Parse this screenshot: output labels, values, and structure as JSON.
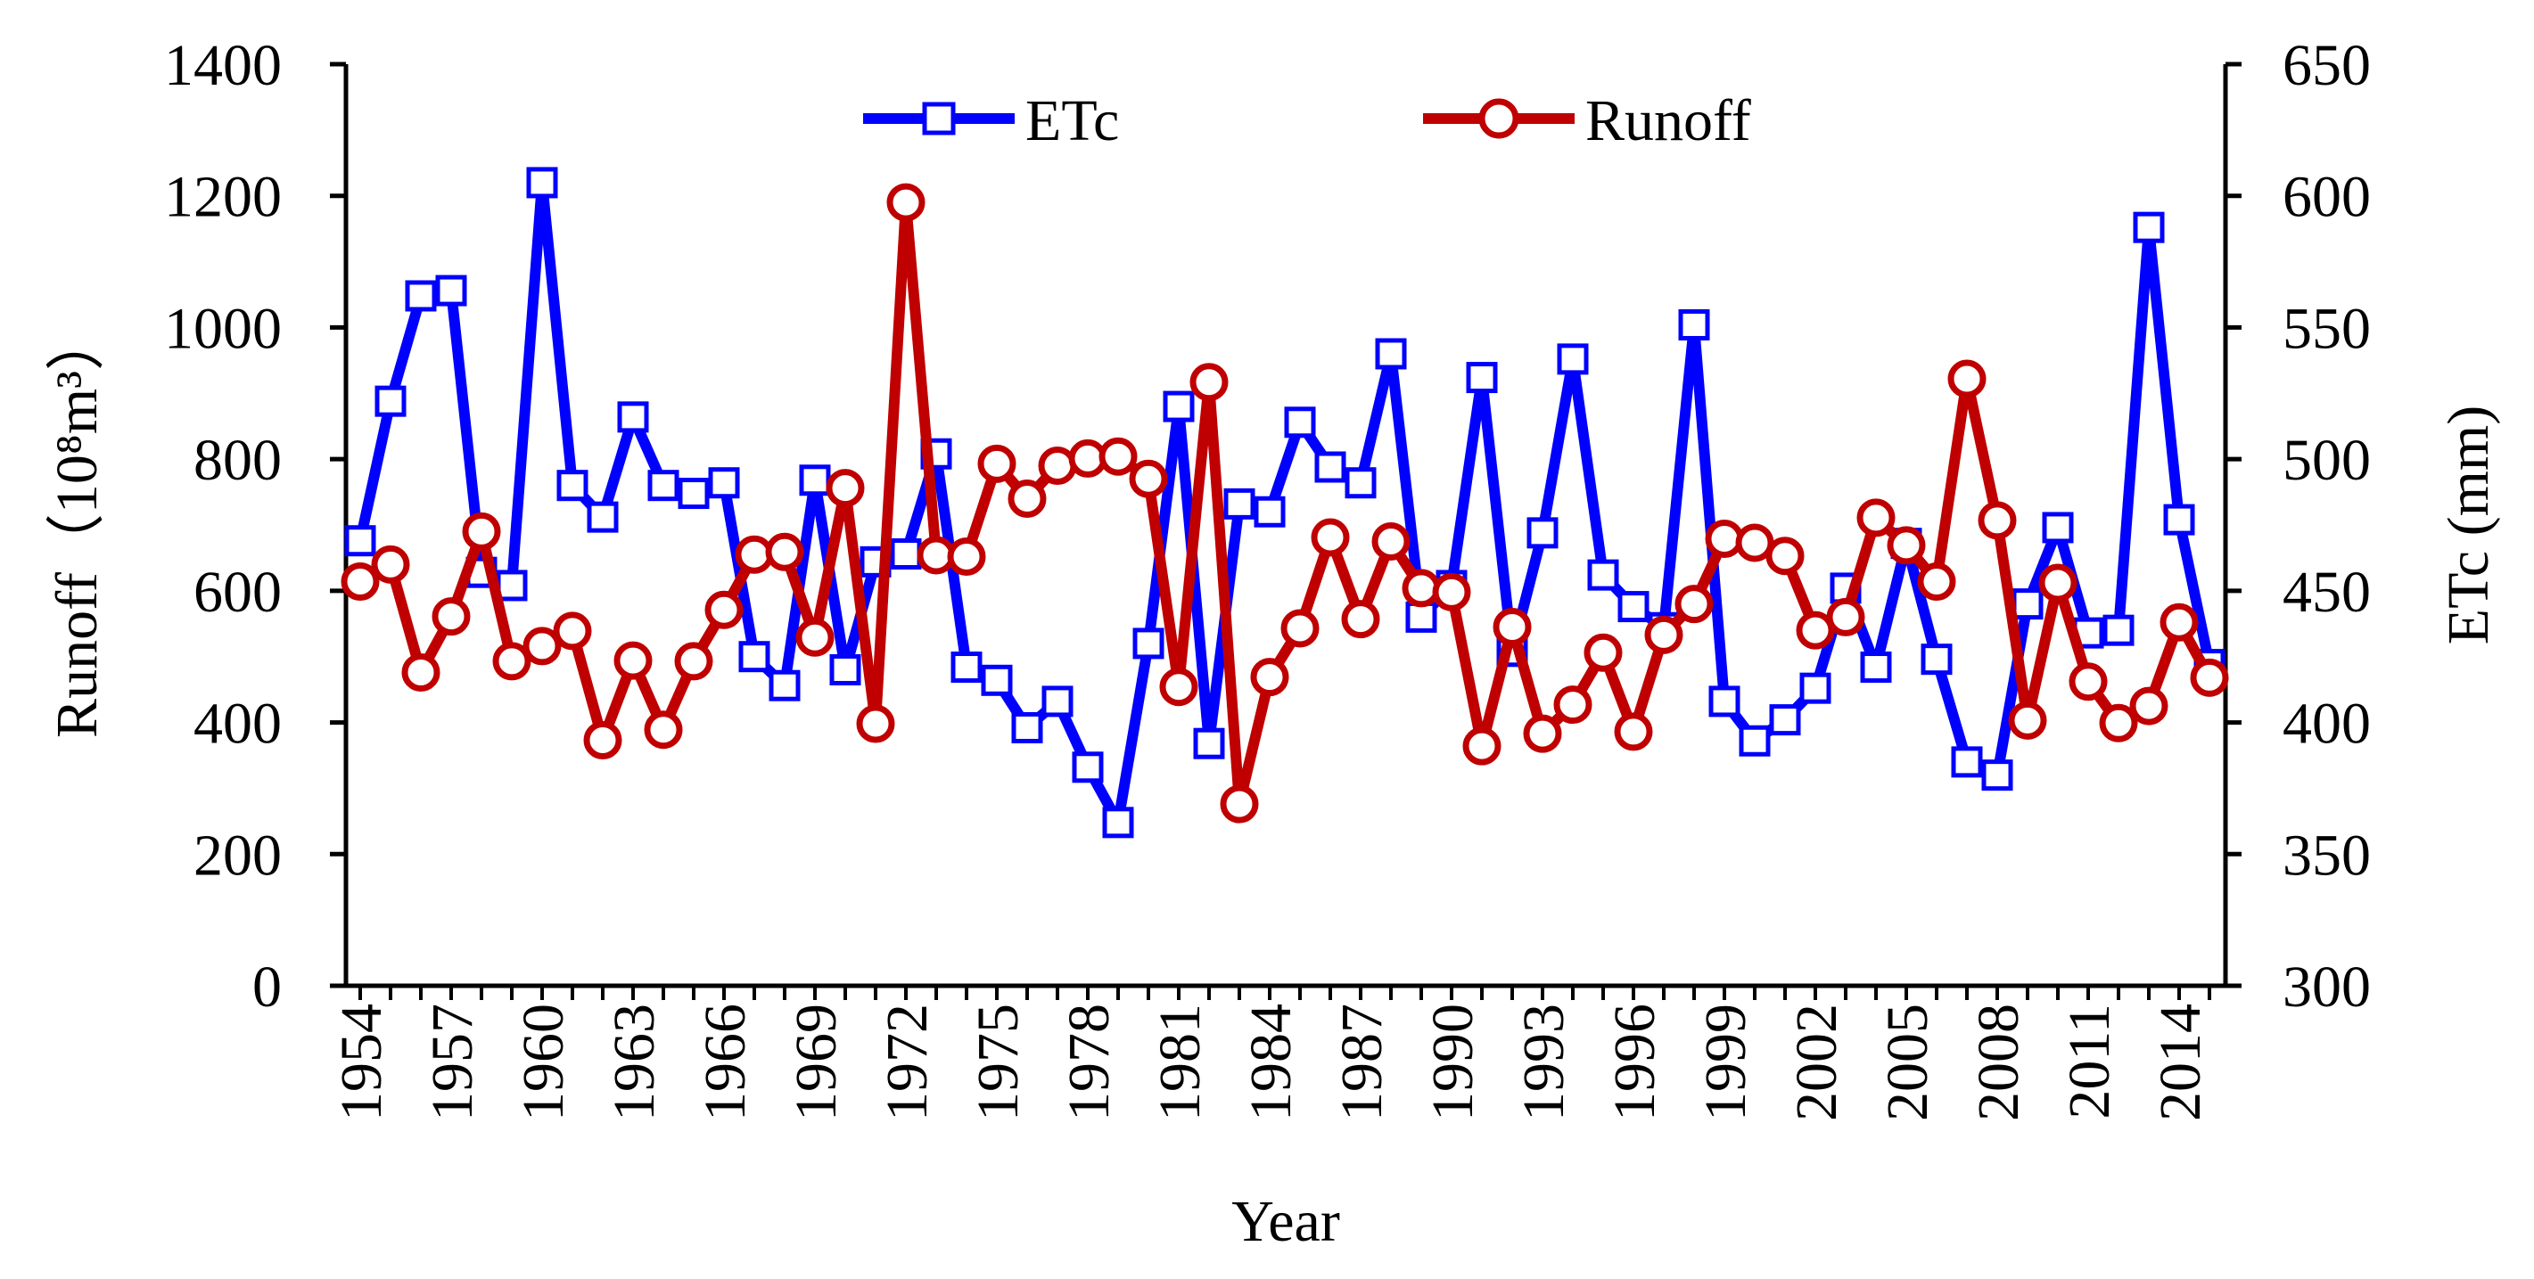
{
  "chart_data": {
    "type": "line",
    "title": "",
    "xlabel": "Year",
    "ylabel_left": "Runoff（10⁸m³）",
    "ylabel_right": "ETc (mm)",
    "ylim_left": [
      0,
      1400
    ],
    "ylim_right": [
      300,
      650
    ],
    "yticks_left": [
      "0",
      "200",
      "400",
      "600",
      "800",
      "1000",
      "1200",
      "1400"
    ],
    "yticks_right": [
      "300",
      "350",
      "400",
      "450",
      "500",
      "550",
      "600",
      "650"
    ],
    "x": [
      1954,
      1955,
      1956,
      1957,
      1958,
      1959,
      1960,
      1961,
      1962,
      1963,
      1964,
      1965,
      1966,
      1967,
      1968,
      1969,
      1970,
      1971,
      1972,
      1973,
      1974,
      1975,
      1976,
      1977,
      1978,
      1979,
      1980,
      1981,
      1982,
      1983,
      1984,
      1985,
      1986,
      1987,
      1988,
      1989,
      1990,
      1991,
      1992,
      1993,
      1994,
      1995,
      1996,
      1997,
      1998,
      1999,
      2000,
      2001,
      2002,
      2003,
      2004,
      2005,
      2006,
      2007,
      2008,
      2009,
      2010,
      2011,
      2012,
      2013,
      2014,
      2015
    ],
    "xtick_labels": [
      "1954",
      "1957",
      "1960",
      "1963",
      "1966",
      "1969",
      "1972",
      "1975",
      "1978",
      "1981",
      "1984",
      "1987",
      "1990",
      "1993",
      "1996",
      "1999",
      "2002",
      "2005",
      "2008",
      "2011",
      "2014"
    ],
    "series": [
      {
        "name": "ETc",
        "axis": "right",
        "color": "#0000ff",
        "marker": "square-open",
        "values": [
          469,
          522,
          562,
          564,
          457,
          452,
          605,
          490,
          478,
          516,
          490,
          487,
          491,
          425,
          414,
          492,
          420,
          461,
          464,
          502,
          421,
          416,
          398,
          408,
          383,
          362,
          430,
          520,
          392,
          483,
          480,
          514,
          497,
          491,
          540,
          440,
          452,
          531,
          427,
          472,
          538,
          456,
          444,
          436,
          551,
          408,
          393,
          401,
          413,
          451,
          421,
          468,
          424,
          385,
          380,
          445,
          474,
          434,
          435,
          588,
          477,
          422
        ]
      },
      {
        "name": "Runoff",
        "axis": "left",
        "color": "#c00000",
        "marker": "circle-open",
        "values": [
          614,
          640,
          476,
          561,
          690,
          493,
          516,
          539,
          373,
          494,
          389,
          493,
          571,
          655,
          659,
          529,
          756,
          398,
          1190,
          654,
          652,
          793,
          740,
          790,
          801,
          804,
          770,
          454,
          917,
          276,
          469,
          543,
          681,
          557,
          675,
          604,
          598,
          364,
          545,
          383,
          427,
          506,
          386,
          533,
          580,
          679,
          673,
          653,
          540,
          560,
          711,
          669,
          614,
          922,
          707,
          403,
          612,
          462,
          399,
          425,
          552,
          468
        ]
      }
    ]
  }
}
